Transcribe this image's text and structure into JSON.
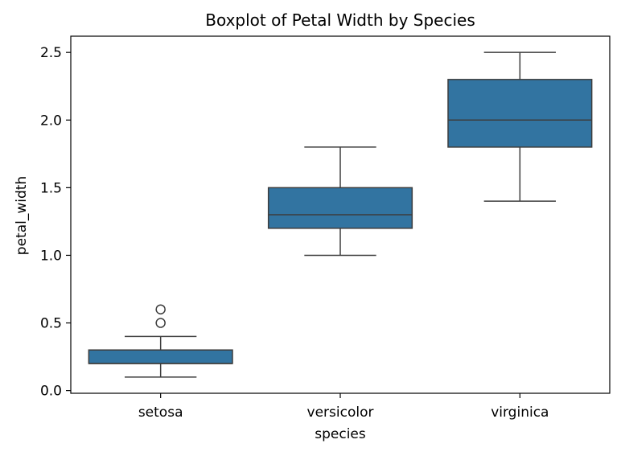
{
  "chart_data": {
    "type": "box",
    "title": "Boxplot of Petal Width by Species",
    "xlabel": "species",
    "ylabel": "petal_width",
    "categories": [
      "setosa",
      "versicolor",
      "virginica"
    ],
    "ylim": [
      -0.02,
      2.62
    ],
    "yticks": [
      0.0,
      0.5,
      1.0,
      1.5,
      2.0,
      2.5
    ],
    "ytick_labels": [
      "0.0",
      "0.5",
      "1.0",
      "1.5",
      "2.0",
      "2.5"
    ],
    "grid": false,
    "legend": "none",
    "series": [
      {
        "category": "setosa",
        "whisker_low": 0.1,
        "q1": 0.2,
        "median": 0.2,
        "q3": 0.3,
        "whisker_high": 0.4,
        "outliers": [
          0.5,
          0.6
        ]
      },
      {
        "category": "versicolor",
        "whisker_low": 1.0,
        "q1": 1.2,
        "median": 1.3,
        "q3": 1.5,
        "whisker_high": 1.8,
        "outliers": []
      },
      {
        "category": "virginica",
        "whisker_low": 1.4,
        "q1": 1.8,
        "median": 2.0,
        "q3": 2.3,
        "whisker_high": 2.5,
        "outliers": []
      }
    ],
    "colors": {
      "box_fill": "#3274a1",
      "line": "#3d3d3d",
      "axis": "#000000",
      "background": "#ffffff"
    }
  }
}
